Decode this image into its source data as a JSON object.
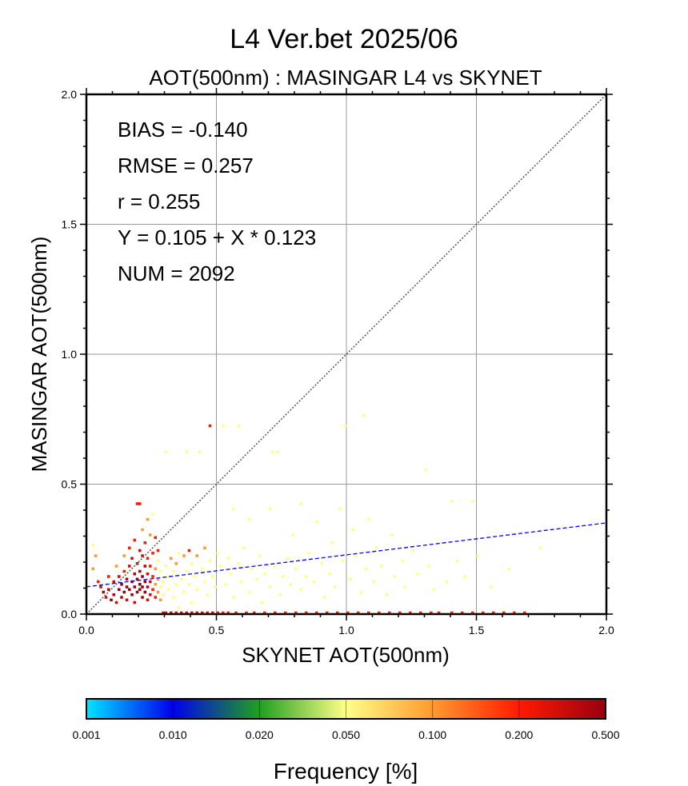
{
  "colors": {
    "grid": "#999999",
    "identity_line": "#555555",
    "regression_line": "#0000ff",
    "frame": "#000000",
    "text": "#000000"
  },
  "chart_data": {
    "type": "heatmap",
    "title": "L4  Ver.bet  2025/06",
    "subtitle": "AOT(500nm) : MASINGAR L4 vs SKYNET",
    "xlabel": "SKYNET AOT(500nm)",
    "ylabel": "MASINGAR AOT(500nm)",
    "xlim": [
      0,
      2
    ],
    "ylim": [
      0,
      2
    ],
    "grid": true,
    "x_ticks": [
      {
        "value": 0.0,
        "label": "0.0"
      },
      {
        "value": 0.5,
        "label": "0.5"
      },
      {
        "value": 1.0,
        "label": "1.0"
      },
      {
        "value": 1.5,
        "label": "1.5"
      },
      {
        "value": 2.0,
        "label": "2.0"
      }
    ],
    "y_ticks": [
      {
        "value": 0.0,
        "label": "0.0"
      },
      {
        "value": 0.5,
        "label": "0.5"
      },
      {
        "value": 1.0,
        "label": "1.0"
      },
      {
        "value": 1.5,
        "label": "1.5"
      },
      {
        "value": 2.0,
        "label": "2.0"
      }
    ],
    "stats": [
      "BIAS = -0.140",
      "RMSE = 0.257",
      "r = 0.255",
      "Y = 0.105 + X * 0.123",
      "NUM = 2092"
    ],
    "regression": {
      "intercept": 0.105,
      "slope": 0.123
    },
    "identity_line": true,
    "bin_size": 0.01,
    "cells": [
      [
        0.02,
        0.26,
        0.05
      ],
      [
        0.03,
        0.22,
        0.1
      ],
      [
        0.02,
        0.17,
        0.1
      ],
      [
        0.04,
        0.12,
        0.2
      ],
      [
        0.05,
        0.1,
        0.3
      ],
      [
        0.06,
        0.08,
        0.4
      ],
      [
        0.07,
        0.06,
        0.3
      ],
      [
        0.08,
        0.09,
        0.4
      ],
      [
        0.08,
        0.14,
        0.2
      ],
      [
        0.09,
        0.05,
        0.5
      ],
      [
        0.1,
        0.07,
        0.4
      ],
      [
        0.1,
        0.12,
        0.3
      ],
      [
        0.11,
        0.04,
        0.3
      ],
      [
        0.11,
        0.18,
        0.1
      ],
      [
        0.12,
        0.09,
        0.5
      ],
      [
        0.12,
        0.14,
        0.3
      ],
      [
        0.13,
        0.06,
        0.4
      ],
      [
        0.13,
        0.11,
        0.5
      ],
      [
        0.14,
        0.08,
        0.5
      ],
      [
        0.14,
        0.16,
        0.2
      ],
      [
        0.14,
        0.22,
        0.1
      ],
      [
        0.15,
        0.05,
        0.3
      ],
      [
        0.15,
        0.1,
        0.5
      ],
      [
        0.15,
        0.13,
        0.4
      ],
      [
        0.16,
        0.09,
        0.5
      ],
      [
        0.16,
        0.18,
        0.3
      ],
      [
        0.16,
        0.25,
        0.2
      ],
      [
        0.17,
        0.07,
        0.5
      ],
      [
        0.17,
        0.12,
        0.5
      ],
      [
        0.17,
        0.21,
        0.3
      ],
      [
        0.18,
        0.04,
        0.3
      ],
      [
        0.18,
        0.1,
        0.5
      ],
      [
        0.18,
        0.15,
        0.4
      ],
      [
        0.18,
        0.28,
        0.2
      ],
      [
        0.19,
        0.08,
        0.5
      ],
      [
        0.19,
        0.13,
        0.5
      ],
      [
        0.19,
        0.19,
        0.3
      ],
      [
        0.19,
        0.42,
        0.2
      ],
      [
        0.2,
        0.09,
        0.5
      ],
      [
        0.2,
        0.11,
        0.5
      ],
      [
        0.2,
        0.16,
        0.4
      ],
      [
        0.2,
        0.24,
        0.3
      ],
      [
        0.2,
        0.42,
        0.2
      ],
      [
        0.21,
        0.06,
        0.4
      ],
      [
        0.21,
        0.1,
        0.5
      ],
      [
        0.21,
        0.14,
        0.5
      ],
      [
        0.21,
        0.22,
        0.3
      ],
      [
        0.21,
        0.32,
        0.1
      ],
      [
        0.22,
        0.08,
        0.5
      ],
      [
        0.22,
        0.12,
        0.5
      ],
      [
        0.22,
        0.18,
        0.4
      ],
      [
        0.22,
        0.27,
        0.2
      ],
      [
        0.23,
        0.05,
        0.3
      ],
      [
        0.23,
        0.1,
        0.4
      ],
      [
        0.23,
        0.15,
        0.3
      ],
      [
        0.23,
        0.21,
        0.2
      ],
      [
        0.23,
        0.36,
        0.1
      ],
      [
        0.24,
        0.07,
        0.3
      ],
      [
        0.24,
        0.12,
        0.3
      ],
      [
        0.24,
        0.18,
        0.2
      ],
      [
        0.24,
        0.3,
        0.1
      ],
      [
        0.25,
        0.09,
        0.2
      ],
      [
        0.25,
        0.14,
        0.2
      ],
      [
        0.25,
        0.23,
        0.2
      ],
      [
        0.25,
        0.38,
        0.05
      ],
      [
        0.26,
        0.06,
        0.2
      ],
      [
        0.26,
        0.11,
        0.1
      ],
      [
        0.26,
        0.17,
        0.1
      ],
      [
        0.26,
        0.29,
        0.2
      ],
      [
        0.27,
        0.08,
        0.1
      ],
      [
        0.27,
        0.13,
        0.1
      ],
      [
        0.27,
        0.2,
        0.05
      ],
      [
        0.27,
        0.24,
        0.2
      ],
      [
        0.28,
        0.05,
        0.1
      ],
      [
        0.28,
        0.1,
        0.05
      ],
      [
        0.28,
        0.16,
        0.05
      ],
      [
        0.29,
        0.0,
        0.3
      ],
      [
        0.29,
        0.07,
        0.05
      ],
      [
        0.29,
        0.12,
        0.05
      ],
      [
        0.3,
        0.0,
        0.3
      ],
      [
        0.3,
        0.18,
        0.05
      ],
      [
        0.3,
        0.62,
        0.05
      ],
      [
        0.31,
        0.09,
        0.05
      ],
      [
        0.31,
        0.14,
        0.05
      ],
      [
        0.32,
        0.0,
        0.3
      ],
      [
        0.32,
        0.21,
        0.1
      ],
      [
        0.33,
        0.06,
        0.05
      ],
      [
        0.33,
        0.16,
        0.05
      ],
      [
        0.34,
        0.0,
        0.3
      ],
      [
        0.34,
        0.11,
        0.05
      ],
      [
        0.34,
        0.19,
        0.1
      ],
      [
        0.35,
        0.02,
        0.05
      ],
      [
        0.35,
        0.23,
        0.05
      ],
      [
        0.36,
        0.0,
        0.3
      ],
      [
        0.36,
        0.13,
        0.05
      ],
      [
        0.37,
        0.08,
        0.05
      ],
      [
        0.37,
        0.22,
        0.1
      ],
      [
        0.38,
        0.0,
        0.3
      ],
      [
        0.38,
        0.16,
        0.05
      ],
      [
        0.38,
        0.62,
        0.05
      ],
      [
        0.39,
        0.11,
        0.05
      ],
      [
        0.39,
        0.24,
        0.2
      ],
      [
        0.4,
        0.0,
        0.3
      ],
      [
        0.4,
        0.04,
        0.05
      ],
      [
        0.4,
        0.19,
        0.05
      ],
      [
        0.41,
        0.14,
        0.05
      ],
      [
        0.42,
        0.0,
        0.3
      ],
      [
        0.42,
        0.09,
        0.05
      ],
      [
        0.42,
        0.22,
        0.1
      ],
      [
        0.43,
        0.62,
        0.05
      ],
      [
        0.44,
        0.0,
        0.3
      ],
      [
        0.44,
        0.17,
        0.05
      ],
      [
        0.45,
        0.12,
        0.05
      ],
      [
        0.45,
        0.25,
        0.1
      ],
      [
        0.46,
        0.0,
        0.3
      ],
      [
        0.46,
        0.07,
        0.05
      ],
      [
        0.47,
        0.2,
        0.05
      ],
      [
        0.47,
        0.72,
        0.2
      ],
      [
        0.48,
        0.0,
        0.3
      ],
      [
        0.48,
        0.14,
        0.05
      ],
      [
        0.49,
        0.1,
        0.05
      ],
      [
        0.5,
        0.0,
        0.2
      ],
      [
        0.5,
        0.23,
        0.05
      ],
      [
        0.51,
        0.18,
        0.05
      ],
      [
        0.52,
        0.0,
        0.2
      ],
      [
        0.52,
        0.72,
        0.05
      ],
      [
        0.53,
        0.11,
        0.05
      ],
      [
        0.54,
        0.0,
        0.2
      ],
      [
        0.54,
        0.21,
        0.05
      ],
      [
        0.55,
        0.15,
        0.05
      ],
      [
        0.56,
        0.06,
        0.05
      ],
      [
        0.56,
        0.4,
        0.05
      ],
      [
        0.57,
        0.0,
        0.2
      ],
      [
        0.58,
        0.19,
        0.05
      ],
      [
        0.58,
        0.72,
        0.05
      ],
      [
        0.59,
        0.12,
        0.05
      ],
      [
        0.6,
        0.25,
        0.05
      ],
      [
        0.61,
        0.0,
        0.2
      ],
      [
        0.62,
        0.08,
        0.05
      ],
      [
        0.62,
        0.36,
        0.05
      ],
      [
        0.63,
        0.17,
        0.05
      ],
      [
        0.64,
        0.0,
        0.2
      ],
      [
        0.65,
        0.13,
        0.05
      ],
      [
        0.66,
        0.22,
        0.05
      ],
      [
        0.67,
        0.04,
        0.05
      ],
      [
        0.68,
        0.0,
        0.2
      ],
      [
        0.68,
        0.15,
        0.05
      ],
      [
        0.7,
        0.1,
        0.05
      ],
      [
        0.7,
        0.4,
        0.05
      ],
      [
        0.71,
        0.62,
        0.05
      ],
      [
        0.72,
        0.0,
        0.2
      ],
      [
        0.72,
        0.18,
        0.05
      ],
      [
        0.73,
        0.62,
        0.05
      ],
      [
        0.74,
        0.07,
        0.05
      ],
      [
        0.75,
        0.14,
        0.05
      ],
      [
        0.76,
        0.0,
        0.2
      ],
      [
        0.77,
        0.21,
        0.05
      ],
      [
        0.78,
        0.11,
        0.05
      ],
      [
        0.79,
        0.3,
        0.05
      ],
      [
        0.8,
        0.0,
        0.2
      ],
      [
        0.8,
        0.17,
        0.05
      ],
      [
        0.82,
        0.09,
        0.05
      ],
      [
        0.82,
        0.42,
        0.05
      ],
      [
        0.84,
        0.0,
        0.2
      ],
      [
        0.84,
        0.14,
        0.05
      ],
      [
        0.85,
        0.23,
        0.05
      ],
      [
        0.87,
        0.12,
        0.05
      ],
      [
        0.88,
        0.0,
        0.2
      ],
      [
        0.88,
        0.35,
        0.05
      ],
      [
        0.9,
        0.19,
        0.05
      ],
      [
        0.91,
        0.06,
        0.05
      ],
      [
        0.92,
        0.0,
        0.2
      ],
      [
        0.93,
        0.15,
        0.05
      ],
      [
        0.94,
        0.27,
        0.05
      ],
      [
        0.95,
        0.1,
        0.05
      ],
      [
        0.96,
        0.0,
        0.2
      ],
      [
        0.97,
        0.4,
        0.05
      ],
      [
        0.98,
        0.2,
        0.05
      ],
      [
        0.99,
        0.72,
        0.05
      ],
      [
        1.0,
        0.0,
        0.2
      ],
      [
        1.01,
        0.13,
        0.05
      ],
      [
        1.02,
        0.32,
        0.05
      ],
      [
        1.03,
        0.22,
        0.05
      ],
      [
        1.04,
        0.0,
        0.2
      ],
      [
        1.05,
        0.08,
        0.05
      ],
      [
        1.06,
        0.76,
        0.05
      ],
      [
        1.07,
        0.17,
        0.05
      ],
      [
        1.08,
        0.36,
        0.05
      ],
      [
        1.08,
        0.0,
        0.2
      ],
      [
        1.1,
        0.12,
        0.05
      ],
      [
        1.11,
        0.25,
        0.05
      ],
      [
        1.12,
        0.0,
        0.2
      ],
      [
        1.13,
        0.18,
        0.05
      ],
      [
        1.15,
        0.07,
        0.05
      ],
      [
        1.16,
        0.0,
        0.2
      ],
      [
        1.17,
        0.3,
        0.05
      ],
      [
        1.18,
        0.14,
        0.05
      ],
      [
        1.2,
        0.0,
        0.2
      ],
      [
        1.21,
        0.2,
        0.05
      ],
      [
        1.22,
        0.1,
        0.05
      ],
      [
        1.24,
        0.0,
        0.2
      ],
      [
        1.25,
        0.24,
        0.05
      ],
      [
        1.27,
        0.15,
        0.05
      ],
      [
        1.28,
        0.0,
        0.2
      ],
      [
        1.3,
        0.55,
        0.05
      ],
      [
        1.31,
        0.18,
        0.05
      ],
      [
        1.32,
        0.0,
        0.2
      ],
      [
        1.33,
        0.09,
        0.05
      ],
      [
        1.35,
        0.0,
        0.2
      ],
      [
        1.36,
        0.27,
        0.05
      ],
      [
        1.38,
        0.12,
        0.05
      ],
      [
        1.4,
        0.0,
        0.2
      ],
      [
        1.4,
        0.43,
        0.05
      ],
      [
        1.42,
        0.2,
        0.05
      ],
      [
        1.44,
        0.0,
        0.2
      ],
      [
        1.45,
        0.14,
        0.05
      ],
      [
        1.48,
        0.43,
        0.05
      ],
      [
        1.48,
        0.0,
        0.2
      ],
      [
        1.5,
        0.22,
        0.05
      ],
      [
        1.52,
        0.0,
        0.2
      ],
      [
        1.55,
        0.1,
        0.05
      ],
      [
        1.56,
        0.0,
        0.2
      ],
      [
        1.6,
        0.0,
        0.2
      ],
      [
        1.62,
        0.17,
        0.05
      ],
      [
        1.64,
        0.0,
        0.2
      ],
      [
        1.68,
        0.0,
        0.2
      ],
      [
        1.74,
        0.25,
        0.05
      ]
    ]
  },
  "colorbar": {
    "label": "Frequency [%]",
    "scale": "log",
    "ticks": [
      "0.001",
      "0.010",
      "0.020",
      "0.050",
      "0.100",
      "0.200",
      "0.500"
    ],
    "colors": [
      "#00e5ff",
      "#0000ee",
      "#1fa01f",
      "#ffff88",
      "#ff9a30",
      "#ff1a00",
      "#990010"
    ]
  }
}
